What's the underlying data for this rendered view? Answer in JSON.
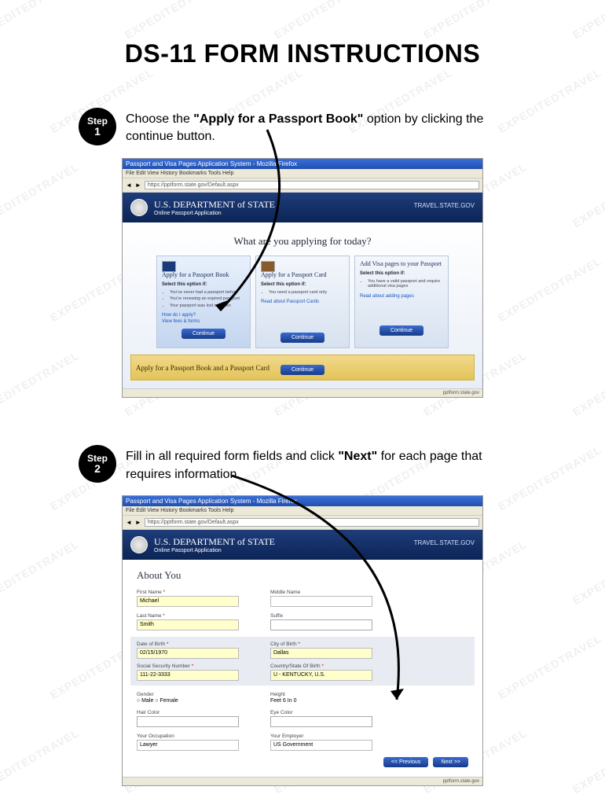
{
  "watermark_text": "EXPEDITEDTRAVEL",
  "title": "DS-11 FORM INSTRUCTIONS",
  "steps": [
    {
      "badge_label": "Step",
      "badge_num": "1",
      "text_pre": "Choose the ",
      "text_bold": "\"Apply for a Passport Book\"",
      "text_post": " option by clicking the continue button."
    },
    {
      "badge_label": "Step",
      "badge_num": "2",
      "text_pre": "Fill in all required form fields and click ",
      "text_bold": "\"Next\"",
      "text_post": " for each page that requires information."
    }
  ],
  "browser": {
    "window_title": "Passport and Visa Pages Application System - Mozilla Firefox",
    "menu": "File  Edit  View  History  Bookmarks  Tools  Help",
    "address": "https://pptform.state.gov/Default.aspx",
    "status": "pptform.state.gov"
  },
  "site": {
    "name": "U.S. DEPARTMENT of STATE",
    "subtitle": "Online Passport Application",
    "right": "TRAVEL.STATE.GOV"
  },
  "shot1": {
    "heading": "What are you applying for today?",
    "cards": [
      {
        "title": "Apply for a Passport Book",
        "sub": "Select this option if:",
        "bullets": [
          "You've never had a passport before",
          "You're renewing an expired passport",
          "Your passport was lost or stolen"
        ],
        "link1": "How do I apply?",
        "link2": "View fees & forms",
        "btn": "Continue"
      },
      {
        "title": "Apply for a Passport Card",
        "sub": "Select this option if:",
        "bullets": [
          "You need a passport card only"
        ],
        "link1": "Read about Passport Cards",
        "btn": "Continue"
      },
      {
        "title": "Add Visa pages to your Passport",
        "sub": "Select this option if:",
        "bullets": [
          "You have a valid passport and require additional visa pages"
        ],
        "link1": "Read about adding pages",
        "btn": "Continue"
      }
    ],
    "combo_text": "Apply for a Passport Book and a Passport Card",
    "combo_btn": "Continue"
  },
  "shot2": {
    "heading": "About You",
    "fields": {
      "first_name_label": "First Name",
      "first_name_value": "Michael",
      "middle_name_label": "Middle Name",
      "last_name_label": "Last Name",
      "last_name_value": "Smith",
      "suffix_label": "Suffix",
      "dob_label": "Date of Birth",
      "dob_value": "02/15/1970",
      "cob_label": "City of Birth",
      "cob_value": "Dallas",
      "ssn_label": "Social Security Number",
      "ssn_value": "111-22-3333",
      "country_label": "Country/State Of Birth",
      "country_value": "U - KENTUCKY, U.S.",
      "gender_label": "Gender",
      "gender_value": "Male  Female",
      "height_label": "Height",
      "height_value": "Feet 6   In 0",
      "hair_label": "Hair Color",
      "eye_label": "Eye Color",
      "occupation_label": "Your Occupation",
      "occupation_value": "Lawyer",
      "employer_label": "Your Employer",
      "employer_value": "US Government"
    },
    "prev_btn": "<< Previous",
    "next_btn": "Next >>"
  },
  "colors": {
    "badge_bg": "#000000",
    "browser_title_bg": "#2050b0",
    "site_header_bg": "#1e3d7a",
    "btn_bg": "#163b8a",
    "combo_bg": "#e3c45a",
    "field_highlight": "#ffffcc"
  }
}
